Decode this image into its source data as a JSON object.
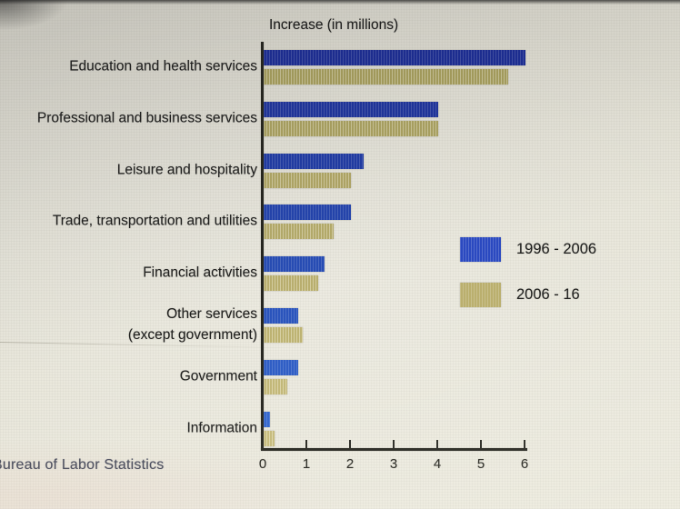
{
  "chart_data": {
    "type": "bar",
    "orientation": "horizontal",
    "title": "Increase (in millions)",
    "source": "Bureau of Labor Statistics",
    "categories": [
      "Education and health services",
      "Professional and business services",
      "Leisure and hospitality",
      "Trade, transportation and utilities",
      "Financial activities",
      "Other services (except government)",
      "Government",
      "Information"
    ],
    "series": [
      {
        "name": "1996 - 2006",
        "color": "#2a49c0",
        "values": [
          6.0,
          4.0,
          2.3,
          2.0,
          1.4,
          0.8,
          0.8,
          0.15
        ]
      },
      {
        "name": "2006 - 16",
        "color": "#b9ae6c",
        "values": [
          5.6,
          4.0,
          2.0,
          1.6,
          1.25,
          0.9,
          0.55,
          0.25
        ]
      }
    ],
    "xlim": [
      0,
      6
    ],
    "x_ticks": [
      0,
      1,
      2,
      3,
      4,
      5,
      6
    ],
    "grid": false,
    "legend_position": "middle-right"
  },
  "colors": {
    "bar_blue_top": "#1c2d94",
    "bar_blue_bottom": "#2f63cc",
    "bar_olive_top": "#aea561",
    "bar_olive_bottom": "#cdc17f",
    "axis": "#26261f",
    "background": "#e5e3d7",
    "source_text": "#3d4354"
  }
}
